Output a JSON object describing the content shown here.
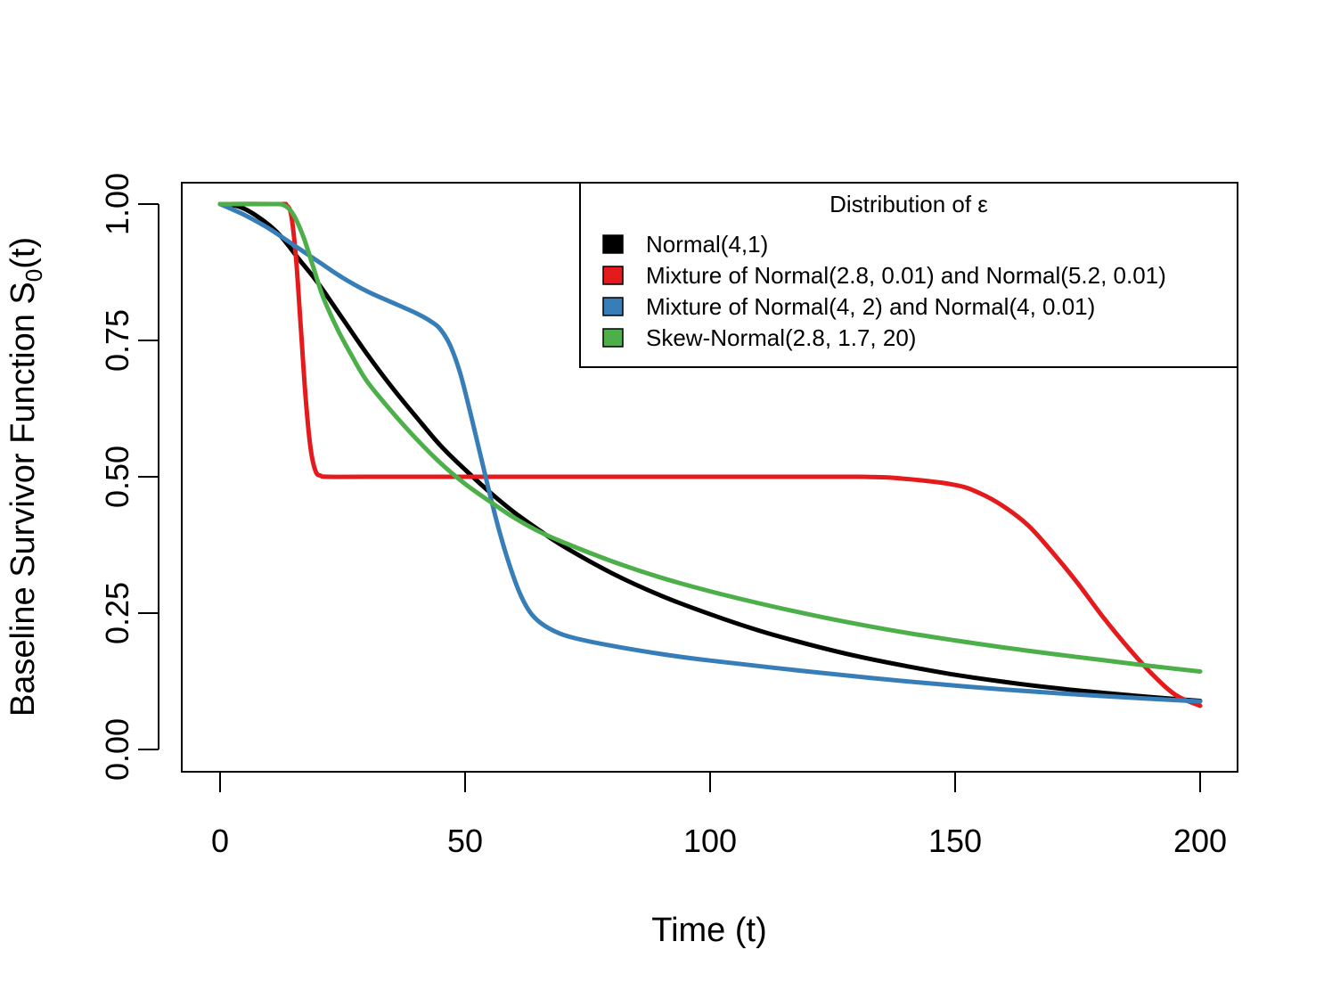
{
  "chart_data": {
    "type": "line",
    "title": "",
    "xlabel": "Time (t)",
    "ylabel_main": "Baseline Survivor Function S",
    "ylabel_sub": "0",
    "ylabel_tail": "(t)",
    "xlim": [
      0,
      200
    ],
    "ylim": [
      0,
      1
    ],
    "x_ticks": [
      0,
      50,
      100,
      150,
      200
    ],
    "x_tick_labels": [
      "0",
      "50",
      "100",
      "150",
      "200"
    ],
    "y_ticks": [
      0,
      0.25,
      0.5,
      0.75,
      1
    ],
    "y_tick_labels": [
      "0.00",
      "0.25",
      "0.50",
      "0.75",
      "1.00"
    ],
    "grid": false,
    "legend": {
      "position": "top-right",
      "title": "Distribution of ε"
    },
    "series": [
      {
        "name": "Normal(4,1)",
        "color": "#000000",
        "x": [
          0,
          4,
          8,
          12,
          16,
          20,
          25,
          30,
          35,
          40,
          45,
          50,
          55,
          60,
          65,
          70,
          80,
          90,
          100,
          110,
          120,
          130,
          140,
          150,
          160,
          170,
          180,
          190,
          200
        ],
        "y": [
          1.0,
          0.995,
          0.975,
          0.945,
          0.9,
          0.855,
          0.79,
          0.725,
          0.665,
          0.61,
          0.557,
          0.513,
          0.472,
          0.435,
          0.403,
          0.373,
          0.323,
          0.282,
          0.248,
          0.218,
          0.193,
          0.171,
          0.153,
          0.137,
          0.124,
          0.113,
          0.104,
          0.096,
          0.089
        ]
      },
      {
        "name": "Mixture of Normal(2.8, 0.01) and Normal(5.2, 0.01)",
        "color": "#e41a1c",
        "x": [
          0,
          12,
          13.5,
          14.5,
          15.5,
          16.5,
          17.5,
          18.5,
          19.5,
          20.5,
          22,
          30,
          60,
          100,
          130,
          140,
          150,
          155,
          160,
          165,
          170,
          175,
          180,
          185,
          190,
          195,
          200
        ],
        "y": [
          1.0,
          1.0,
          0.998,
          0.98,
          0.9,
          0.77,
          0.64,
          0.55,
          0.51,
          0.502,
          0.5,
          0.5,
          0.5,
          0.5,
          0.5,
          0.496,
          0.485,
          0.47,
          0.445,
          0.41,
          0.36,
          0.305,
          0.245,
          0.19,
          0.14,
          0.1,
          0.08
        ]
      },
      {
        "name": "Mixture of Normal(4, 2) and Normal(4, 0.01)",
        "color": "#377eb8",
        "x": [
          0,
          5,
          10,
          15,
          20,
          25,
          30,
          35,
          40,
          43,
          45,
          47,
          49,
          51,
          53,
          55,
          57,
          59,
          61,
          63,
          65,
          68,
          72,
          80,
          90,
          100,
          120,
          140,
          160,
          180,
          200
        ],
        "y": [
          1.0,
          0.98,
          0.955,
          0.925,
          0.895,
          0.865,
          0.84,
          0.82,
          0.8,
          0.785,
          0.77,
          0.74,
          0.69,
          0.62,
          0.545,
          0.47,
          0.4,
          0.34,
          0.29,
          0.255,
          0.235,
          0.218,
          0.205,
          0.19,
          0.175,
          0.163,
          0.143,
          0.125,
          0.11,
          0.098,
          0.088
        ]
      },
      {
        "name": "Skew-Normal(2.8, 1.7, 20)",
        "color": "#4daf4a",
        "x": [
          0,
          10,
          13,
          15,
          17,
          19,
          21,
          24,
          27,
          30,
          35,
          40,
          45,
          50,
          55,
          60,
          65,
          70,
          80,
          90,
          100,
          110,
          120,
          130,
          140,
          150,
          160,
          170,
          180,
          190,
          200
        ],
        "y": [
          1.0,
          1.0,
          0.998,
          0.98,
          0.94,
          0.885,
          0.83,
          0.77,
          0.72,
          0.675,
          0.62,
          0.57,
          0.525,
          0.487,
          0.455,
          0.425,
          0.4,
          0.38,
          0.345,
          0.315,
          0.29,
          0.268,
          0.248,
          0.23,
          0.214,
          0.2,
          0.187,
          0.175,
          0.164,
          0.153,
          0.143
        ]
      }
    ]
  }
}
